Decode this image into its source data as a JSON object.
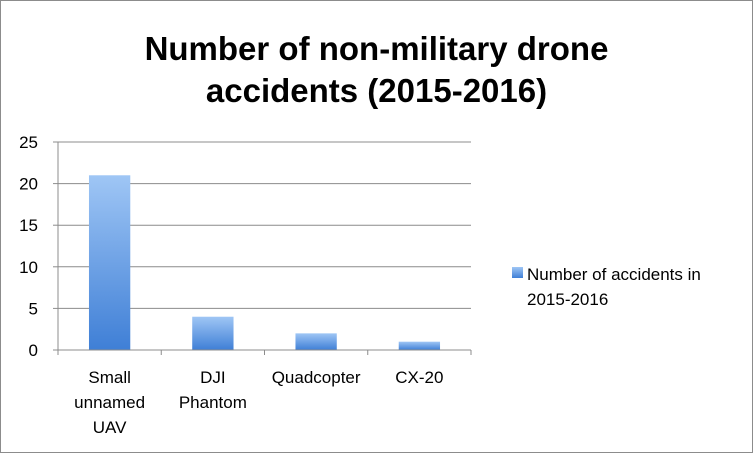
{
  "chart_data": {
    "type": "bar",
    "title": "Number of non-military drone accidents (2015-2016)",
    "title_lines": [
      "Number of non-military drone",
      "accidents (2015-2016)"
    ],
    "categories": [
      "Small unnamed UAV",
      "DJI Phantom",
      "Quadcopter",
      "CX-20"
    ],
    "category_lines": [
      [
        "Small",
        "unnamed",
        "UAV"
      ],
      [
        "DJI",
        "Phantom"
      ],
      [
        "Quadcopter"
      ],
      [
        "CX-20"
      ]
    ],
    "series": [
      {
        "name": "Number of accidents in 2015-2016",
        "values": [
          21,
          4,
          2,
          1
        ],
        "color_top": "#9fc6f5",
        "color_bottom": "#3f7fd6"
      }
    ],
    "yticks": [
      "0",
      "5",
      "10",
      "15",
      "20",
      "25"
    ],
    "ylim": [
      0,
      25
    ],
    "xlabel": "",
    "ylabel": "",
    "grid": true,
    "legend": "right",
    "legend_lines": [
      "Number of accidents in",
      "2015-2016"
    ]
  }
}
